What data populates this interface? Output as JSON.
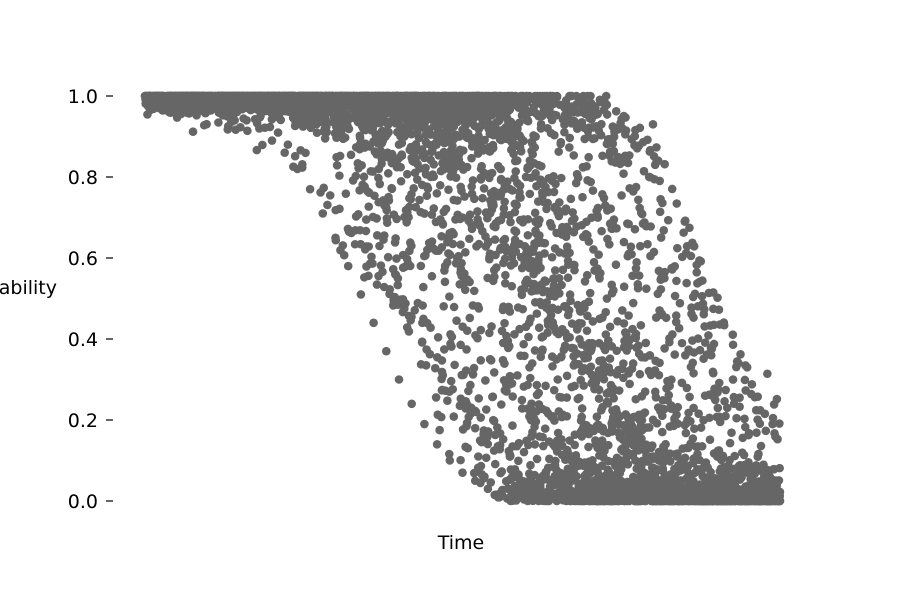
{
  "chart_data": {
    "type": "scatter",
    "title": "",
    "xlabel": "Time",
    "ylabel": "Probability",
    "x_ticks_visible": false,
    "ylim": [
      0,
      1
    ],
    "y_ticks": [
      {
        "value": 0.0,
        "label": "0.0"
      },
      {
        "value": 0.2,
        "label": "0.2"
      },
      {
        "value": 0.4,
        "label": "0.4"
      },
      {
        "value": 0.6,
        "label": "0.6"
      },
      {
        "value": 0.8,
        "label": "0.8"
      },
      {
        "value": 1.0,
        "label": "1.0"
      }
    ],
    "grid": false,
    "marker_color": "#666666",
    "series": [
      {
        "name": "",
        "description_curve": "logistic decay curves with varying midpoint and steepness",
        "points": [
          {
            "x": 0.0,
            "y": 1.0
          },
          {
            "x": 0.02,
            "y": 1.0
          },
          {
            "x": 0.04,
            "y": 0.99
          },
          {
            "x": 0.06,
            "y": 0.99
          },
          {
            "x": 0.08,
            "y": 0.99
          },
          {
            "x": 0.1,
            "y": 0.98
          },
          {
            "x": 0.12,
            "y": 0.97
          },
          {
            "x": 0.14,
            "y": 0.96
          },
          {
            "x": 0.16,
            "y": 0.94
          },
          {
            "x": 0.18,
            "y": 0.92
          },
          {
            "x": 0.2,
            "y": 0.89
          },
          {
            "x": 0.22,
            "y": 0.86
          },
          {
            "x": 0.24,
            "y": 0.82
          },
          {
            "x": 0.26,
            "y": 0.77
          },
          {
            "x": 0.28,
            "y": 0.71
          },
          {
            "x": 0.3,
            "y": 0.65
          },
          {
            "x": 0.32,
            "y": 0.58
          },
          {
            "x": 0.34,
            "y": 0.51
          },
          {
            "x": 0.36,
            "y": 0.44
          },
          {
            "x": 0.38,
            "y": 0.37
          },
          {
            "x": 0.4,
            "y": 0.3
          },
          {
            "x": 0.42,
            "y": 0.24
          },
          {
            "x": 0.44,
            "y": 0.19
          },
          {
            "x": 0.46,
            "y": 0.14
          },
          {
            "x": 0.48,
            "y": 0.1
          },
          {
            "x": 0.5,
            "y": 0.07
          },
          {
            "x": 0.52,
            "y": 0.05
          },
          {
            "x": 0.54,
            "y": 0.03
          },
          {
            "x": 0.56,
            "y": 0.02
          },
          {
            "x": 0.58,
            "y": 0.01
          },
          {
            "x": 0.6,
            "y": 0.01
          },
          {
            "x": 0.62,
            "y": 0.0
          },
          {
            "x": 0.3,
            "y": 0.95
          },
          {
            "x": 0.35,
            "y": 0.92
          },
          {
            "x": 0.4,
            "y": 0.88
          },
          {
            "x": 0.45,
            "y": 0.8
          },
          {
            "x": 0.5,
            "y": 0.7
          },
          {
            "x": 0.55,
            "y": 0.57
          },
          {
            "x": 0.6,
            "y": 0.43
          },
          {
            "x": 0.65,
            "y": 0.3
          },
          {
            "x": 0.7,
            "y": 0.18
          },
          {
            "x": 0.75,
            "y": 0.1
          },
          {
            "x": 0.8,
            "y": 0.05
          },
          {
            "x": 0.85,
            "y": 0.02
          },
          {
            "x": 0.9,
            "y": 0.01
          },
          {
            "x": 0.95,
            "y": 0.0
          },
          {
            "x": 1.0,
            "y": 0.0
          },
          {
            "x": 0.85,
            "y": 0.69
          },
          {
            "x": 0.8,
            "y": 0.93
          },
          {
            "x": 0.7,
            "y": 0.97
          },
          {
            "x": 0.68,
            "y": 0.98
          }
        ]
      }
    ]
  }
}
